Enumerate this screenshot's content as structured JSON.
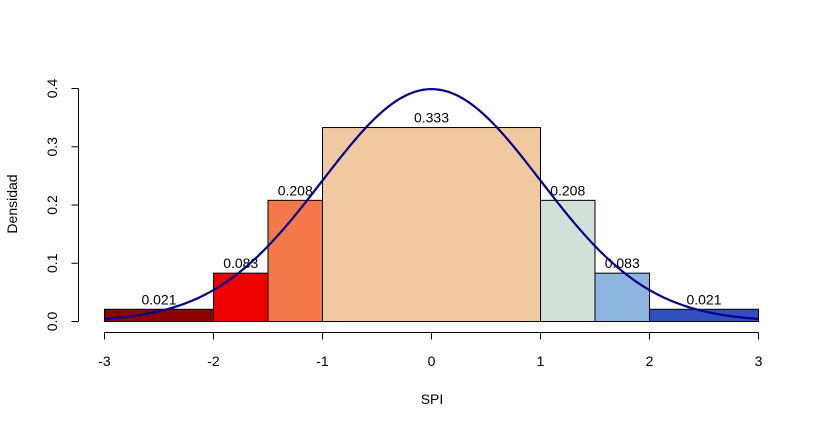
{
  "chart_data": {
    "type": "bar",
    "title": "",
    "xlabel": "SPI",
    "ylabel": "Densidad",
    "xlim": [
      -3,
      3
    ],
    "ylim": [
      0,
      0.4
    ],
    "x_ticks": [
      "-3",
      "-2",
      "-1",
      "0",
      "1",
      "2",
      "3"
    ],
    "y_ticks": [
      "0.0",
      "0.1",
      "0.2",
      "0.3",
      "0.4"
    ],
    "grid": false,
    "bins": [
      {
        "x0": -3.0,
        "x1": -2.0,
        "value": 0.021,
        "label": "0.021",
        "color": "#8B0000"
      },
      {
        "x0": -2.0,
        "x1": -1.5,
        "value": 0.083,
        "label": "0.083",
        "color": "#EE0000"
      },
      {
        "x0": -1.5,
        "x1": -1.0,
        "value": 0.208,
        "label": "0.208",
        "color": "#F4784A"
      },
      {
        "x0": -1.0,
        "x1": 1.0,
        "value": 0.333,
        "label": "0.333",
        "color": "#F0C9A0"
      },
      {
        "x0": 1.0,
        "x1": 1.5,
        "value": 0.208,
        "label": "0.208",
        "color": "#D2E0D8"
      },
      {
        "x0": 1.5,
        "x1": 2.0,
        "value": 0.083,
        "label": "0.083",
        "color": "#8DB5DF"
      },
      {
        "x0": 2.0,
        "x1": 3.0,
        "value": 0.021,
        "label": "0.021",
        "color": "#3050C0"
      }
    ],
    "curve": {
      "type": "normal-density",
      "mean": 0,
      "sd": 1,
      "color": "#00008B"
    }
  }
}
